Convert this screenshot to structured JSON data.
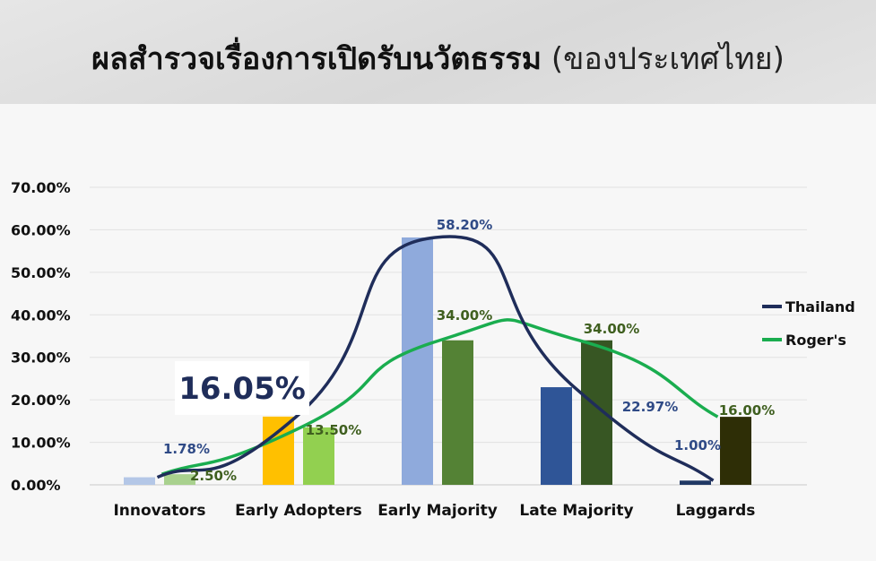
{
  "header": {
    "title_main": "ผลสำรวจเรื่องการเปิดรับนวัตธรรม",
    "title_sub": "(ของประเทศไทย)"
  },
  "callout": "16.05%",
  "chart_data": {
    "type": "bar",
    "categories": [
      "Innovators",
      "Early Adopters",
      "Early Majority",
      "Late Majority",
      "Laggards"
    ],
    "y_ticks": [
      "0.00%",
      "10.00%",
      "20.00%",
      "30.00%",
      "40.00%",
      "50.00%",
      "60.00%",
      "70.00%"
    ],
    "ylim": [
      0,
      70
    ],
    "grid": true,
    "legend_position": "right",
    "series": [
      {
        "name": "Thailand",
        "values": [
          1.78,
          16.05,
          58.2,
          22.97,
          1.0
        ],
        "labels": [
          "1.78%",
          "",
          "58.20%",
          "22.97%",
          "1.00%"
        ],
        "bar_colors": [
          "#b4c7e7",
          "#ffc000",
          "#8faadc",
          "#2f5597",
          "#203864"
        ],
        "line_color": "#1f2d5a",
        "label_color": "#2f4a86"
      },
      {
        "name": "Roger's",
        "values": [
          2.5,
          13.5,
          34.0,
          34.0,
          16.0
        ],
        "labels": [
          "2.50%",
          "13.50%",
          "34.00%",
          "34.00%",
          "16.00%"
        ],
        "bar_colors": [
          "#a9d18e",
          "#92d050",
          "#548235",
          "#375623",
          "#2e2e06"
        ],
        "line_color": "#1aad4f",
        "label_color": "#3f5f1f"
      }
    ]
  }
}
